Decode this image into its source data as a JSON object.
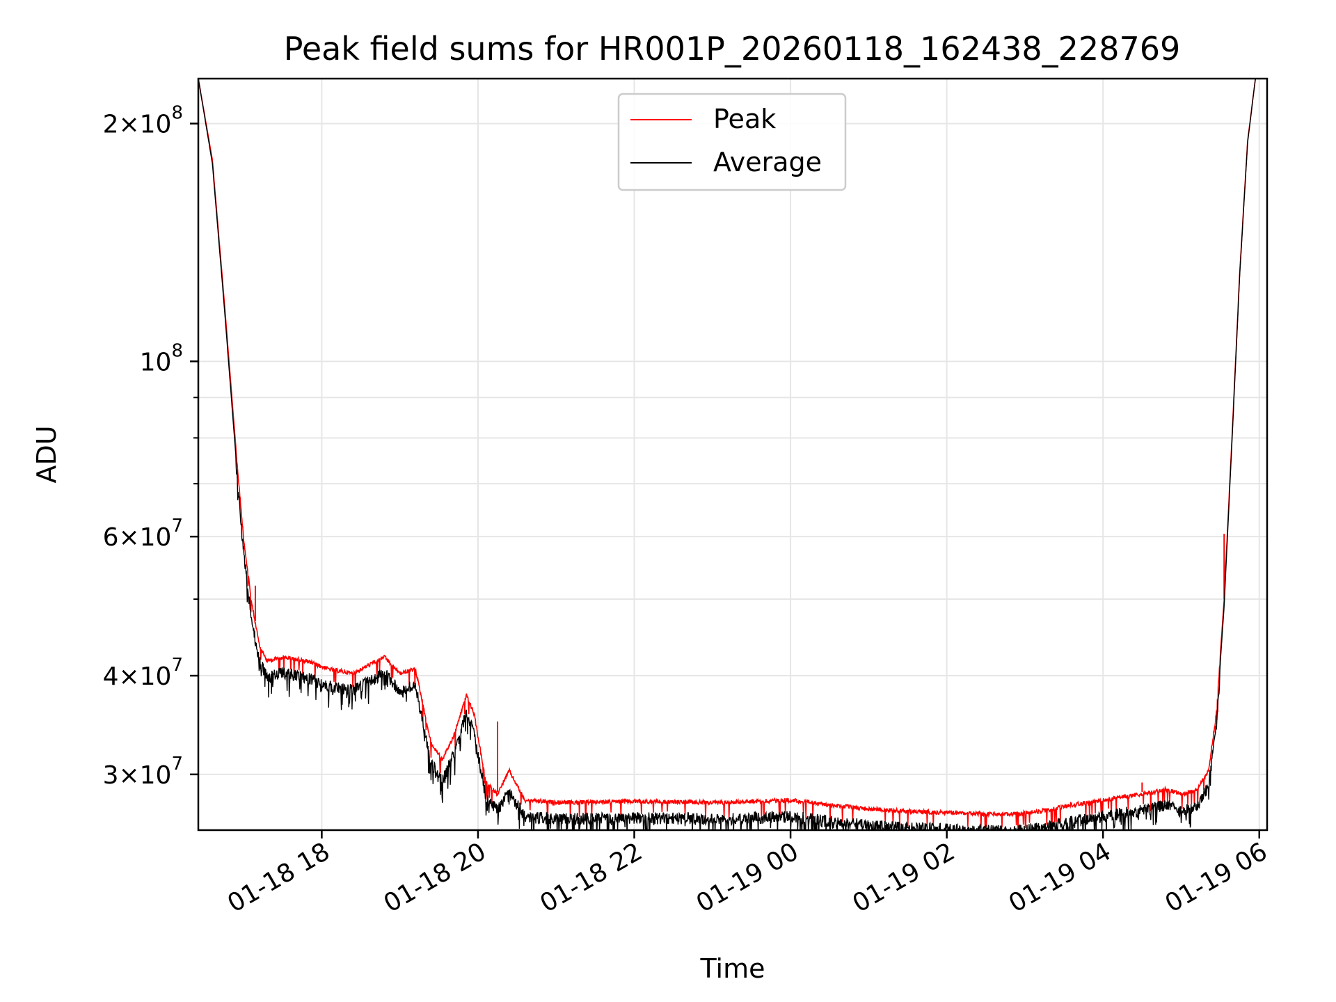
{
  "chart_data": {
    "type": "line",
    "title": "Peak field sums for HR001P_20260118_162438_228769",
    "xlabel": "Time",
    "ylabel": "ADU",
    "yscale": "log",
    "xlim_hours": [
      16.42,
      30.1
    ],
    "ylim": [
      25500000,
      228000000
    ],
    "grid": true,
    "legend_position": "upper center",
    "x_ticks": [
      {
        "label": "01-18 18",
        "hours": 18
      },
      {
        "label": "01-18 20",
        "hours": 20
      },
      {
        "label": "01-18 22",
        "hours": 22
      },
      {
        "label": "01-19 00",
        "hours": 24
      },
      {
        "label": "01-19 02",
        "hours": 26
      },
      {
        "label": "01-19 04",
        "hours": 28
      },
      {
        "label": "01-19 06",
        "hours": 30
      }
    ],
    "y_ticks_major": [
      {
        "value": 30000000,
        "mantissa": "3",
        "exponent": "7"
      },
      {
        "value": 40000000,
        "mantissa": "4",
        "exponent": "7"
      },
      {
        "value": 60000000,
        "mantissa": "6",
        "exponent": "7"
      },
      {
        "value": 100000000,
        "mantissa": "",
        "exponent": "8"
      },
      {
        "value": 200000000,
        "mantissa": "2",
        "exponent": "8"
      }
    ],
    "y_ticks_minor": [
      50000000,
      70000000,
      80000000,
      90000000
    ],
    "series": [
      {
        "name": "Peak",
        "color": "#ff0000",
        "x_hours": [
          16.42,
          16.6,
          16.75,
          16.9,
          17.0,
          17.1,
          17.2,
          17.3,
          17.5,
          17.8,
          18.1,
          18.4,
          18.6,
          18.8,
          19.0,
          19.2,
          19.4,
          19.55,
          19.7,
          19.85,
          19.95,
          20.1,
          20.25,
          20.4,
          20.6,
          21.0,
          22.0,
          23.0,
          24.0,
          24.5,
          25.0,
          25.5,
          26.0,
          26.5,
          26.8,
          27.2,
          27.6,
          28.0,
          28.3,
          28.6,
          28.8,
          29.0,
          29.2,
          29.35,
          29.45,
          29.55,
          29.65,
          29.75,
          29.85,
          29.95,
          30.1
        ],
        "values": [
          228000000,
          180000000,
          120000000,
          78000000,
          60000000,
          50000000,
          44000000,
          42000000,
          42500000,
          42000000,
          41000000,
          40500000,
          41500000,
          42500000,
          40500000,
          41000000,
          33000000,
          31500000,
          34000000,
          38000000,
          36000000,
          29500000,
          28500000,
          30500000,
          28000000,
          27800000,
          27900000,
          27800000,
          28000000,
          27600000,
          27300000,
          27100000,
          27000000,
          26900000,
          26850000,
          27100000,
          27600000,
          28000000,
          28300000,
          28600000,
          28900000,
          28500000,
          28800000,
          30500000,
          36000000,
          50000000,
          80000000,
          130000000,
          190000000,
          228000000,
          228000000
        ],
        "spikes": [
          {
            "x_hours": 17.15,
            "value": 52000000
          },
          {
            "x_hours": 20.25,
            "value": 35000000
          },
          {
            "x_hours": 28.5,
            "value": 29300000
          },
          {
            "x_hours": 29.35,
            "value": 30300000
          },
          {
            "x_hours": 29.55,
            "value": 60500000
          }
        ]
      },
      {
        "name": "Average",
        "color": "#000000",
        "x_hours": [
          16.42,
          16.6,
          16.75,
          16.9,
          17.0,
          17.1,
          17.2,
          17.3,
          17.5,
          17.8,
          18.1,
          18.4,
          18.6,
          18.8,
          19.0,
          19.2,
          19.4,
          19.55,
          19.7,
          19.85,
          19.95,
          20.1,
          20.25,
          20.4,
          20.6,
          21.0,
          22.0,
          23.0,
          24.0,
          24.5,
          25.0,
          25.5,
          26.0,
          26.5,
          26.8,
          27.2,
          27.6,
          28.0,
          28.3,
          28.6,
          28.8,
          29.0,
          29.2,
          29.35,
          29.45,
          29.55,
          29.65,
          29.75,
          29.85,
          29.95,
          30.1
        ],
        "values": [
          228000000,
          178000000,
          118000000,
          76000000,
          58000000,
          48000000,
          42500000,
          40500000,
          41000000,
          40500000,
          39500000,
          39000000,
          40000000,
          41000000,
          39000000,
          39500000,
          31500000,
          30000000,
          32500000,
          36500000,
          34500000,
          28500000,
          27500000,
          29000000,
          27000000,
          26800000,
          26900000,
          26800000,
          27000000,
          26600000,
          26300000,
          26100000,
          26000000,
          25900000,
          25850000,
          26100000,
          26600000,
          27000000,
          27300000,
          27600000,
          27900000,
          27500000,
          27800000,
          29500000,
          35000000,
          49000000,
          79000000,
          129000000,
          189000000,
          228000000,
          228000000
        ],
        "noise_dips": "dense downward noise of about 4% below the trend across the night"
      }
    ]
  }
}
